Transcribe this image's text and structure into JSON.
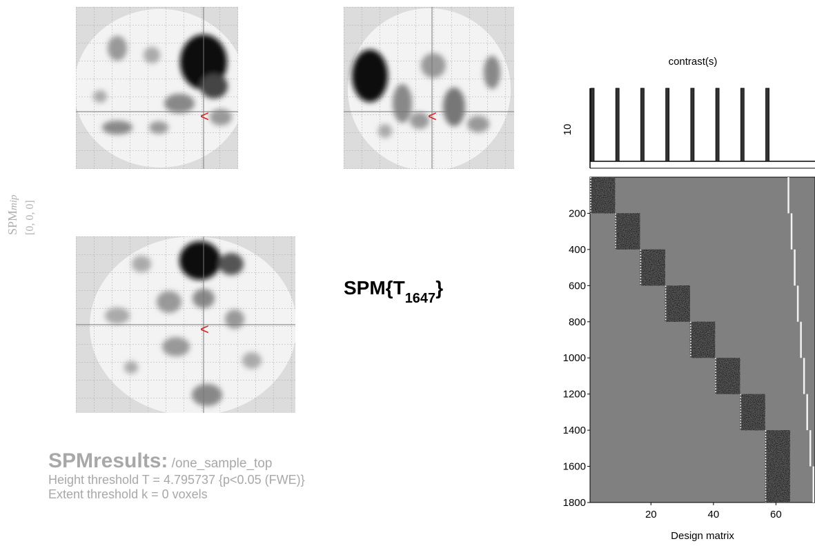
{
  "mip": {
    "label": "SPM",
    "label_italic": "mip",
    "coords": "[0, 0, 0]",
    "cursor_glyph": "<"
  },
  "statistic": {
    "prefix": "SPM{T",
    "df": "1647",
    "suffix": "}"
  },
  "results": {
    "title": "SPMresults:",
    "path": " /one_sample_top",
    "height_threshold": "Height threshold T = 4.795737  {p<0.05 (FWE)}",
    "extent_threshold": "Extent threshold k = 0 voxels"
  },
  "contrast_plot": {
    "title": "contrast(s)",
    "ytick": "10",
    "bars": [
      {
        "column": 1,
        "value": 1
      },
      {
        "column": 9,
        "value": 1
      },
      {
        "column": 17,
        "value": 1
      },
      {
        "column": 25,
        "value": 1
      },
      {
        "column": 33,
        "value": 1
      },
      {
        "column": 41,
        "value": 1
      },
      {
        "column": 49,
        "value": 1
      },
      {
        "column": 57,
        "value": 1
      }
    ]
  },
  "chart_data": {
    "type": "heatmap",
    "title": "",
    "xlabel": "Design matrix",
    "ylabel": "",
    "xlim": [
      1,
      72
    ],
    "ylim": [
      0,
      1800
    ],
    "x_ticks": [
      "20",
      "40",
      "60"
    ],
    "y_ticks": [
      "200",
      "400",
      "600",
      "800",
      "1000",
      "1200",
      "1400",
      "1600",
      "1800"
    ],
    "x_tick_values": [
      20,
      40,
      60
    ],
    "y_tick_values": [
      200,
      400,
      600,
      800,
      1000,
      1200,
      1400,
      1600,
      1800
    ],
    "blocks": [
      {
        "rows": [
          0,
          200
        ],
        "cols": [
          1,
          8
        ]
      },
      {
        "rows": [
          200,
          400
        ],
        "cols": [
          9,
          16
        ]
      },
      {
        "rows": [
          400,
          600
        ],
        "cols": [
          17,
          24
        ]
      },
      {
        "rows": [
          600,
          800
        ],
        "cols": [
          25,
          32
        ]
      },
      {
        "rows": [
          800,
          1000
        ],
        "cols": [
          33,
          40
        ]
      },
      {
        "rows": [
          1000,
          1200
        ],
        "cols": [
          41,
          48
        ]
      },
      {
        "rows": [
          1200,
          1400
        ],
        "cols": [
          49,
          56
        ]
      },
      {
        "rows": [
          1400,
          1600
        ],
        "cols": [
          57,
          64
        ]
      },
      {
        "rows": [
          1600,
          1800
        ],
        "cols": [
          57,
          64
        ]
      }
    ]
  }
}
